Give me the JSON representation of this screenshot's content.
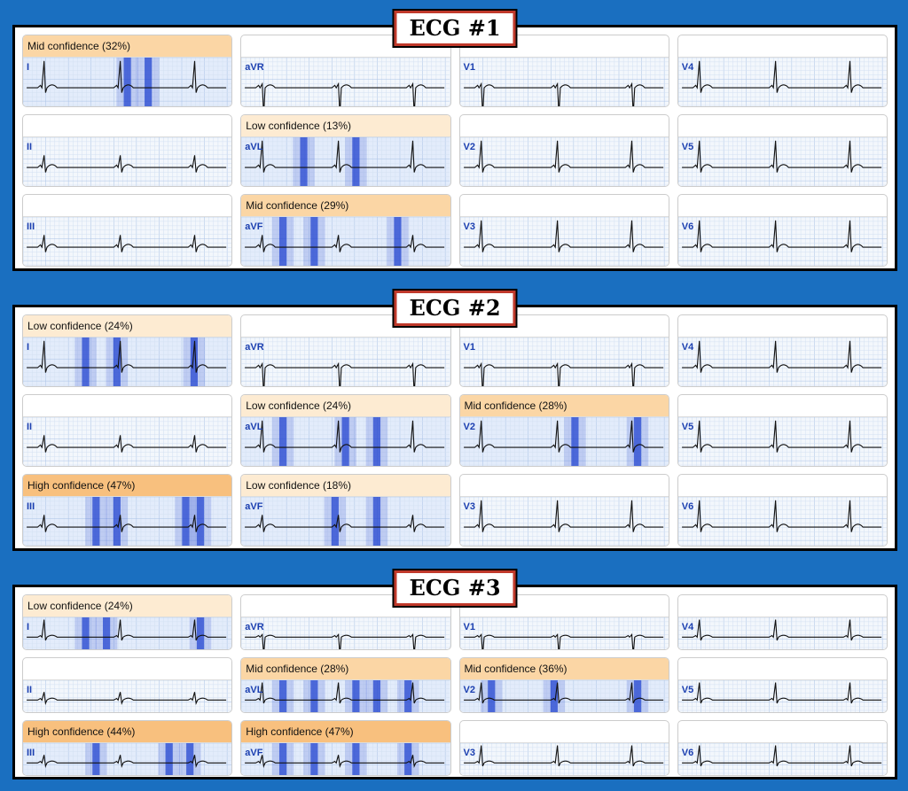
{
  "colors": {
    "background": "#1a6fc0",
    "confidence_low": "#fdebd2",
    "confidence_mid": "#fbd6a5",
    "confidence_high": "#f8c07e",
    "heat": "#1b3fcf",
    "lead_label": "#1b3fb0"
  },
  "ecgs": [
    {
      "title": "ECG #1",
      "leads": [
        {
          "name": "I",
          "conf": "Mid confidence (32%)",
          "level": "mid",
          "heat": [
            0.5,
            0.6
          ]
        },
        {
          "name": "aVR",
          "conf": "",
          "level": "none",
          "heat": []
        },
        {
          "name": "V1",
          "conf": "",
          "level": "none",
          "heat": []
        },
        {
          "name": "V4",
          "conf": "",
          "level": "none",
          "heat": []
        },
        {
          "name": "II",
          "conf": "",
          "level": "none",
          "heat": []
        },
        {
          "name": "aVL",
          "conf": "Low confidence (13%)",
          "level": "low",
          "heat": [
            0.3,
            0.55
          ]
        },
        {
          "name": "V2",
          "conf": "",
          "level": "none",
          "heat": []
        },
        {
          "name": "V5",
          "conf": "",
          "level": "none",
          "heat": []
        },
        {
          "name": "III",
          "conf": "",
          "level": "none",
          "heat": []
        },
        {
          "name": "aVF",
          "conf": "Mid confidence (29%)",
          "level": "mid",
          "heat": [
            0.2,
            0.35,
            0.75
          ]
        },
        {
          "name": "V3",
          "conf": "",
          "level": "none",
          "heat": []
        },
        {
          "name": "V6",
          "conf": "",
          "level": "none",
          "heat": []
        }
      ]
    },
    {
      "title": "ECG #2",
      "leads": [
        {
          "name": "I",
          "conf": "Low confidence (24%)",
          "level": "low",
          "heat": [
            0.3,
            0.45,
            0.82
          ]
        },
        {
          "name": "aVR",
          "conf": "",
          "level": "none",
          "heat": []
        },
        {
          "name": "V1",
          "conf": "",
          "level": "none",
          "heat": []
        },
        {
          "name": "V4",
          "conf": "",
          "level": "none",
          "heat": []
        },
        {
          "name": "II",
          "conf": "",
          "level": "none",
          "heat": []
        },
        {
          "name": "aVL",
          "conf": "Low confidence (24%)",
          "level": "low",
          "heat": [
            0.2,
            0.5,
            0.65
          ]
        },
        {
          "name": "V2",
          "conf": "Mid confidence (28%)",
          "level": "mid",
          "heat": [
            0.55,
            0.85
          ]
        },
        {
          "name": "V5",
          "conf": "",
          "level": "none",
          "heat": []
        },
        {
          "name": "III",
          "conf": "High confidence (47%)",
          "level": "high",
          "heat": [
            0.35,
            0.45,
            0.78,
            0.85
          ]
        },
        {
          "name": "aVF",
          "conf": "Low confidence (18%)",
          "level": "low",
          "heat": [
            0.45,
            0.65
          ]
        },
        {
          "name": "V3",
          "conf": "",
          "level": "none",
          "heat": []
        },
        {
          "name": "V6",
          "conf": "",
          "level": "none",
          "heat": []
        }
      ]
    },
    {
      "title": "ECG #3",
      "leads": [
        {
          "name": "I",
          "conf": "Low confidence (24%)",
          "level": "low",
          "heat": [
            0.3,
            0.4,
            0.85
          ]
        },
        {
          "name": "aVR",
          "conf": "",
          "level": "none",
          "heat": []
        },
        {
          "name": "V1",
          "conf": "",
          "level": "none",
          "heat": []
        },
        {
          "name": "V4",
          "conf": "",
          "level": "none",
          "heat": []
        },
        {
          "name": "II",
          "conf": "",
          "level": "none",
          "heat": []
        },
        {
          "name": "aVL",
          "conf": "Mid confidence (28%)",
          "level": "mid",
          "heat": [
            0.2,
            0.35,
            0.55,
            0.65,
            0.8
          ]
        },
        {
          "name": "V2",
          "conf": "Mid confidence (36%)",
          "level": "mid",
          "heat": [
            0.15,
            0.45,
            0.85
          ]
        },
        {
          "name": "V5",
          "conf": "",
          "level": "none",
          "heat": []
        },
        {
          "name": "III",
          "conf": "High confidence (44%)",
          "level": "high",
          "heat": [
            0.35,
            0.7,
            0.8
          ]
        },
        {
          "name": "aVF",
          "conf": "High confidence (47%)",
          "level": "high",
          "heat": [
            0.2,
            0.35,
            0.55,
            0.8
          ]
        },
        {
          "name": "V3",
          "conf": "",
          "level": "none",
          "heat": []
        },
        {
          "name": "V6",
          "conf": "",
          "level": "none",
          "heat": []
        }
      ]
    }
  ]
}
